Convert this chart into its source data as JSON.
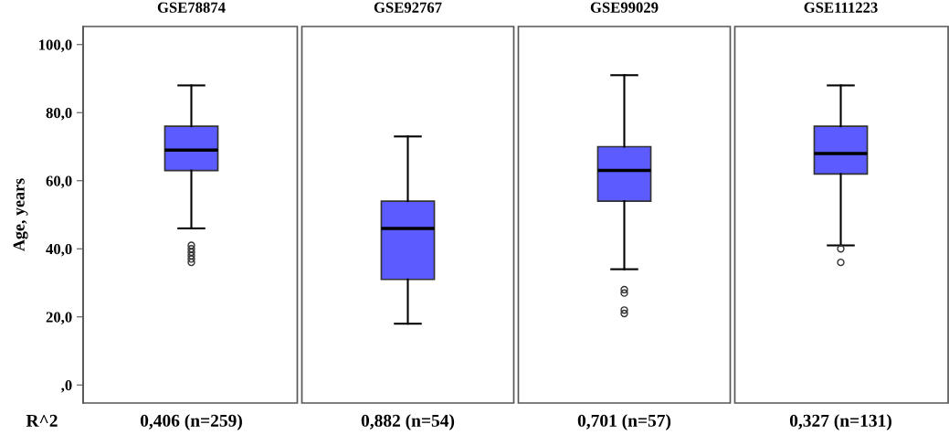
{
  "chart_data": {
    "type": "box",
    "ylabel": "Age, years",
    "color": "#5b5bff",
    "categories": [
      "GSE78874",
      "GSE92767",
      "GSE99029",
      "GSE111223"
    ],
    "boxes": [
      {
        "low": 46,
        "q1": 63,
        "median": 69,
        "q3": 76,
        "high": 88,
        "outliers": [
          41,
          40,
          39,
          38,
          37,
          36
        ]
      },
      {
        "low": 18,
        "q1": 31,
        "median": 46,
        "q3": 54,
        "high": 73
      },
      {
        "low": 34,
        "q1": 54,
        "median": 63,
        "q3": 70,
        "high": 91,
        "outliers": [
          28,
          27,
          22,
          21
        ]
      },
      {
        "low": 41,
        "q1": 62,
        "median": 68,
        "q3": 76,
        "high": 88,
        "outliers": [
          40,
          36
        ]
      }
    ],
    "ylim": [
      -5.3,
      105.3
    ],
    "yticks": [
      {
        "value": 0,
        "label": ",0"
      },
      {
        "value": 20,
        "label": "20,0"
      },
      {
        "value": 40,
        "label": "40,0"
      },
      {
        "value": 60,
        "label": "60,0"
      },
      {
        "value": 80,
        "label": "80,0"
      },
      {
        "value": 100,
        "label": "100,0"
      }
    ],
    "annotations": [
      "R^2",
      "0,406 (n=259)",
      "0,882 (n=54)",
      "0,701 (n=57)",
      "0,327 (n=131)"
    ]
  }
}
